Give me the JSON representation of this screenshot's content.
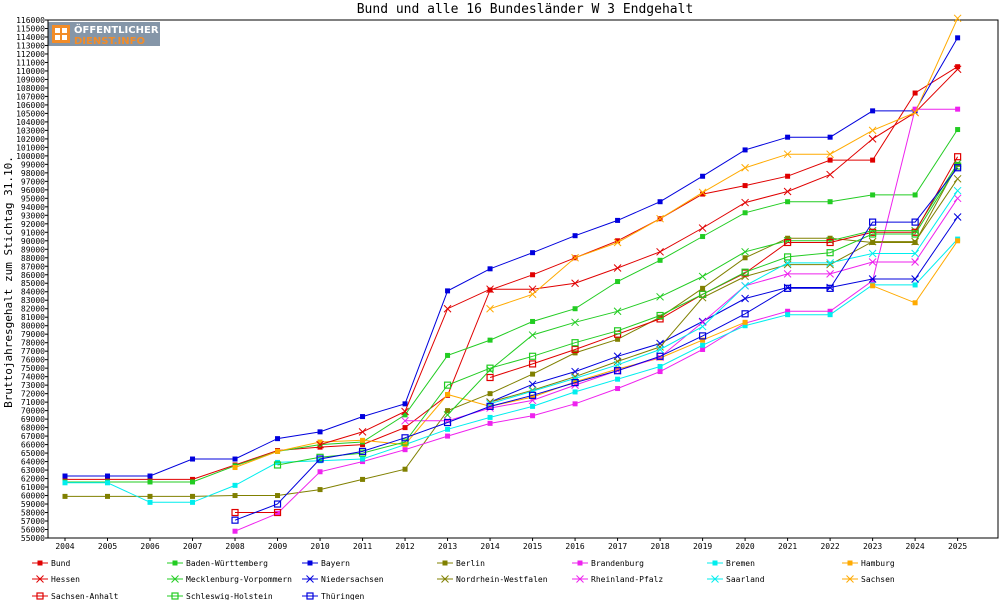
{
  "logo": {
    "line1": "ÖFFENTLICHER",
    "line2": "DIENST.INFO"
  },
  "chart_data": {
    "type": "line",
    "title": "Bund und alle 16 Bundesländer W 3 Endgehalt",
    "ylabel": "Bruttojahresgehalt zum Stichtag 31.10.",
    "xlabel": "",
    "x": [
      2004,
      2005,
      2006,
      2007,
      2008,
      2009,
      2010,
      2011,
      2012,
      2013,
      2014,
      2015,
      2016,
      2017,
      2018,
      2019,
      2020,
      2021,
      2022,
      2023,
      2024,
      2025
    ],
    "xlim": [
      2003.6,
      2025.95
    ],
    "ylim": [
      55000,
      116000
    ],
    "ytick_step": 1000,
    "grid": false,
    "legend_position": "bottom",
    "series": [
      {
        "name": "Bund",
        "color": "#e00000",
        "marker": "dot",
        "values": [
          61900,
          61900,
          61900,
          61900,
          63600,
          65300,
          65700,
          66000,
          68000,
          71800,
          84200,
          86000,
          88000,
          90000,
          92600,
          95500,
          96500,
          97600,
          99500,
          99500,
          107400,
          110500
        ]
      },
      {
        "name": "Baden-Württemberg",
        "color": "#22cc22",
        "marker": "dot",
        "values": [
          61600,
          61600,
          61600,
          61600,
          63500,
          65200,
          66000,
          66300,
          69500,
          76500,
          78300,
          80500,
          82000,
          85200,
          87700,
          90500,
          93300,
          94600,
          94600,
          95400,
          95400,
          103100
        ]
      },
      {
        "name": "Bayern",
        "color": "#0000dd",
        "marker": "dot",
        "values": [
          62300,
          62300,
          62300,
          64300,
          64300,
          66700,
          67500,
          69300,
          70800,
          84100,
          86700,
          88600,
          90600,
          92400,
          94600,
          97600,
          100700,
          102200,
          102200,
          105300,
          105300,
          113900
        ]
      },
      {
        "name": "Berlin",
        "color": "#808000",
        "marker": "dot",
        "values": [
          59900,
          59900,
          59900,
          59900,
          60000,
          60000,
          60700,
          61900,
          63100,
          70000,
          72000,
          74300,
          76800,
          78400,
          81000,
          84400,
          88000,
          90300,
          90300,
          89800,
          89800,
          99000
        ]
      },
      {
        "name": "Brandenburg",
        "color": "#ee22ee",
        "marker": "dot",
        "values": [
          null,
          null,
          null,
          null,
          55800,
          57900,
          62800,
          64000,
          65400,
          67000,
          68500,
          69400,
          70800,
          72600,
          74600,
          77200,
          80300,
          81700,
          81700,
          85300,
          105500,
          105500
        ]
      },
      {
        "name": "Bremen",
        "color": "#00eeee",
        "marker": "dot",
        "values": [
          61500,
          61500,
          59200,
          59200,
          61200,
          63900,
          64100,
          64300,
          66000,
          67800,
          69200,
          70500,
          72200,
          73700,
          75200,
          77700,
          80000,
          81300,
          81300,
          84800,
          84800,
          90200
        ]
      },
      {
        "name": "Hamburg",
        "color": "#ffaa00",
        "marker": "dot",
        "values": [
          null,
          null,
          null,
          null,
          63300,
          65200,
          66300,
          66500,
          66000,
          71900,
          70500,
          71600,
          73400,
          74900,
          76200,
          78300,
          80400,
          null,
          null,
          84700,
          82700,
          90000
        ]
      },
      {
        "name": "Hessen",
        "color": "#e00000",
        "marker": "x",
        "values": [
          null,
          null,
          null,
          null,
          null,
          null,
          66000,
          67500,
          69900,
          82000,
          84300,
          84300,
          85000,
          86800,
          88700,
          91500,
          94500,
          95800,
          97800,
          102000,
          105100,
          110200
        ]
      },
      {
        "name": "Mecklenburg-Vorpommern",
        "color": "#22cc22",
        "marker": "x",
        "values": [
          null,
          null,
          null,
          null,
          null,
          null,
          null,
          null,
          null,
          69500,
          74800,
          78900,
          80400,
          81700,
          83400,
          85800,
          88700,
          90000,
          90000,
          91200,
          91200,
          99100
        ]
      },
      {
        "name": "Niedersachsen",
        "color": "#0000dd",
        "marker": "x",
        "values": [
          null,
          null,
          null,
          null,
          null,
          null,
          null,
          null,
          null,
          null,
          71000,
          73100,
          74600,
          76400,
          77900,
          80500,
          83200,
          84500,
          84500,
          85500,
          85500,
          92800
        ]
      },
      {
        "name": "Nordrhein-Westfalen",
        "color": "#808000",
        "marker": "x",
        "values": [
          null,
          null,
          null,
          null,
          null,
          null,
          null,
          null,
          null,
          null,
          71000,
          72400,
          74000,
          75800,
          77500,
          83300,
          85800,
          87200,
          87200,
          89900,
          89900,
          97300
        ]
      },
      {
        "name": "Rheinland-Pfalz",
        "color": "#ee22ee",
        "marker": "x",
        "values": [
          null,
          null,
          null,
          null,
          null,
          null,
          null,
          null,
          68800,
          68800,
          70300,
          71200,
          73000,
          74700,
          76300,
          80400,
          84700,
          86100,
          86100,
          87500,
          87500,
          95000
        ]
      },
      {
        "name": "Saarland",
        "color": "#00eeee",
        "marker": "x",
        "values": [
          null,
          null,
          null,
          null,
          null,
          null,
          null,
          null,
          null,
          null,
          70800,
          72300,
          73800,
          75400,
          77200,
          79900,
          84700,
          87400,
          87400,
          88500,
          88500,
          95900
        ]
      },
      {
        "name": "Sachsen",
        "color": "#ffaa00",
        "marker": "x",
        "values": [
          null,
          null,
          null,
          null,
          null,
          null,
          null,
          null,
          null,
          null,
          82000,
          83700,
          88000,
          89800,
          92600,
          95700,
          98600,
          100200,
          100200,
          103000,
          105100,
          116200
        ]
      },
      {
        "name": "Sachsen-Anhalt",
        "color": "#e00000",
        "marker": "square",
        "values": [
          null,
          null,
          null,
          null,
          58000,
          58000,
          null,
          null,
          null,
          null,
          73900,
          75500,
          77200,
          79000,
          80800,
          83700,
          86200,
          89800,
          89800,
          91000,
          91000,
          99900
        ]
      },
      {
        "name": "Schleswig-Holstein",
        "color": "#22cc22",
        "marker": "square",
        "values": [
          null,
          null,
          null,
          null,
          null,
          63600,
          64500,
          65000,
          66300,
          73000,
          75000,
          76400,
          78000,
          79400,
          81200,
          83700,
          86300,
          88100,
          88600,
          90800,
          90800,
          98800
        ]
      },
      {
        "name": "Thüringen",
        "color": "#0000dd",
        "marker": "square",
        "values": [
          null,
          null,
          null,
          null,
          57100,
          59000,
          64300,
          65200,
          66800,
          68600,
          70500,
          71800,
          73300,
          74700,
          76400,
          78800,
          81400,
          84400,
          84400,
          92200,
          92200,
          98600
        ]
      }
    ]
  }
}
